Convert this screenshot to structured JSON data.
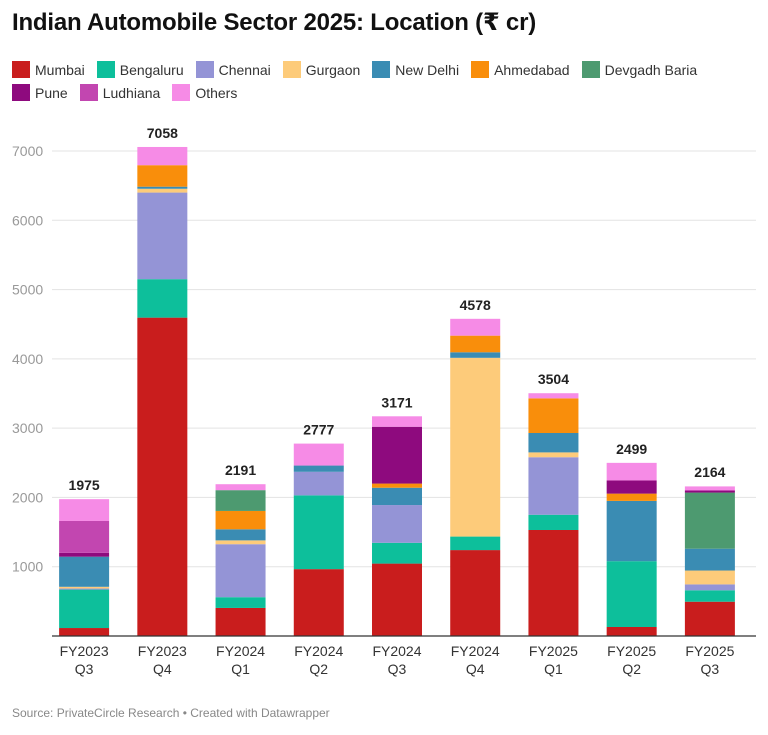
{
  "chart_data": {
    "type": "bar",
    "stacked": true,
    "title": "Indian Automobile Sector 2025: Location (₹ cr)",
    "xlabel": "",
    "ylabel": "",
    "ylim": [
      0,
      7000
    ],
    "yticks": [
      1000,
      2000,
      3000,
      4000,
      5000,
      6000,
      7000
    ],
    "grid": true,
    "legend_position": "top",
    "categories": [
      [
        "FY2023",
        "Q3"
      ],
      [
        "FY2023",
        "Q4"
      ],
      [
        "FY2024",
        "Q1"
      ],
      [
        "FY2024",
        "Q2"
      ],
      [
        "FY2024",
        "Q3"
      ],
      [
        "FY2024",
        "Q4"
      ],
      [
        "FY2025",
        "Q1"
      ],
      [
        "FY2025",
        "Q2"
      ],
      [
        "FY2025",
        "Q3"
      ]
    ],
    "totals": [
      "1975",
      "7058",
      "2191",
      "2777",
      "3171",
      "4578",
      "3504",
      "2499",
      "2164"
    ],
    "totals_values": [
      1975,
      7058,
      2191,
      2777,
      3171,
      4578,
      3504,
      2499,
      2164
    ],
    "series": [
      {
        "name": "Mumbai",
        "color": "#c91d1d",
        "values": [
          115,
          4595,
          405,
          965,
          1045,
          1240,
          1530,
          130,
          495
        ]
      },
      {
        "name": "Bengaluru",
        "color": "#0dbf9b",
        "values": [
          555,
          555,
          155,
          1065,
          300,
          195,
          220,
          950,
          165
        ]
      },
      {
        "name": "Chennai",
        "color": "#9494d6",
        "values": [
          15,
          1250,
          765,
          340,
          545,
          0,
          830,
          0,
          85
        ]
      },
      {
        "name": "Gurgaon",
        "color": "#fdcb7a",
        "values": [
          25,
          55,
          55,
          0,
          0,
          2580,
          70,
          0,
          200
        ]
      },
      {
        "name": "New Delhi",
        "color": "#3a8cb3",
        "values": [
          435,
          30,
          160,
          90,
          250,
          80,
          280,
          870,
          315
        ]
      },
      {
        "name": "Ahmedabad",
        "color": "#f98e0b",
        "values": [
          0,
          310,
          265,
          0,
          60,
          240,
          500,
          105,
          0
        ]
      },
      {
        "name": "Devgadh Baria",
        "color": "#4d9a70",
        "values": [
          0,
          0,
          300,
          0,
          0,
          0,
          0,
          0,
          810
        ]
      },
      {
        "name": "Pune",
        "color": "#8e0a7e",
        "values": [
          55,
          0,
          0,
          0,
          820,
          0,
          0,
          190,
          30
        ]
      },
      {
        "name": "Ludhiana",
        "color": "#c246b0",
        "values": [
          460,
          0,
          0,
          0,
          0,
          0,
          0,
          0,
          0
        ]
      },
      {
        "name": "Others",
        "color": "#f68be6",
        "values": [
          315,
          263,
          86,
          317,
          151,
          243,
          74,
          254,
          59
        ]
      }
    ]
  },
  "footer": {
    "source": "Source: PrivateCircle Research • Created with Datawrapper"
  }
}
